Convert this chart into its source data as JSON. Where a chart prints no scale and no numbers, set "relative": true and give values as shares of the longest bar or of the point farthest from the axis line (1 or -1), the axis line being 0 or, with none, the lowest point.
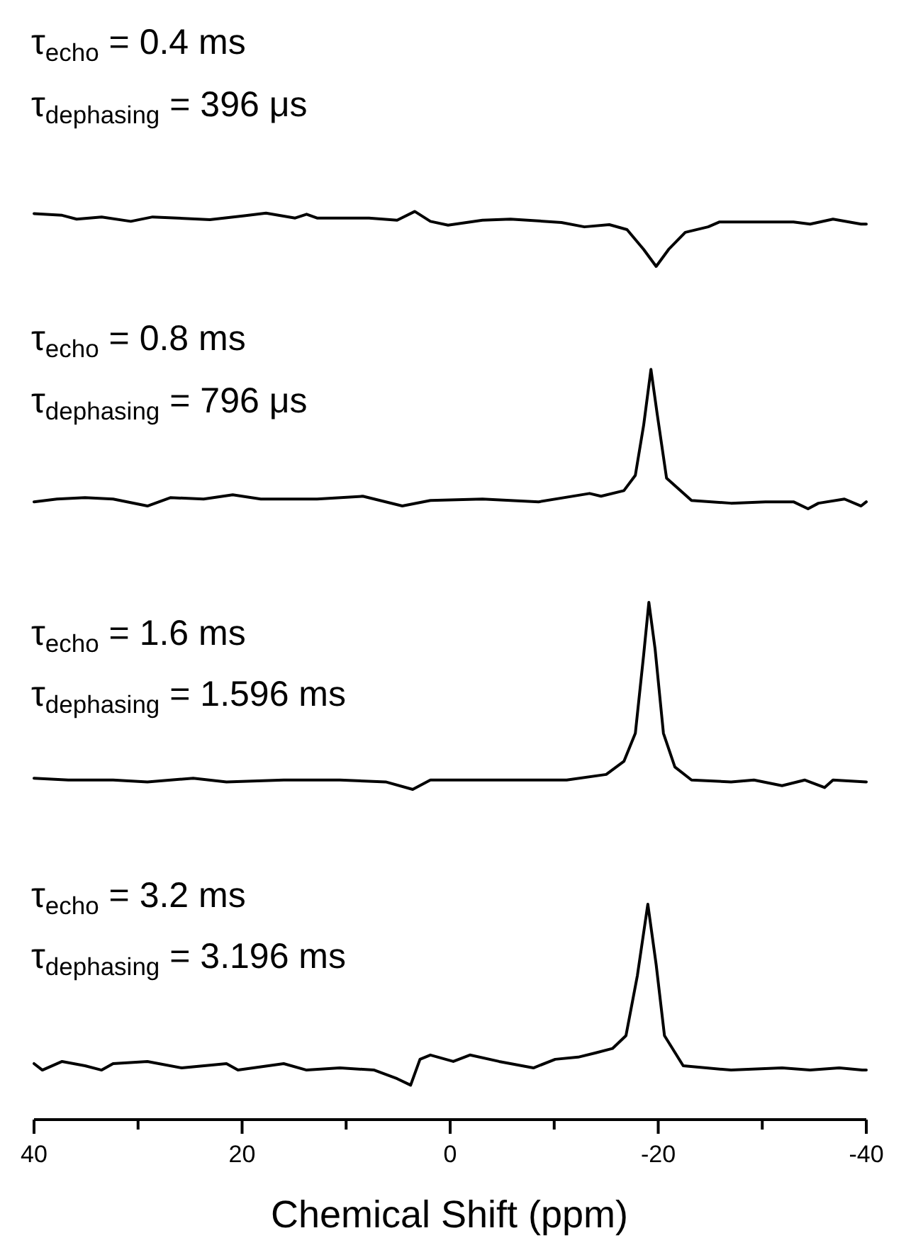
{
  "chart_data": [
    {
      "type": "line",
      "relative": true,
      "color": "#000000",
      "xlim": [
        40,
        -40
      ],
      "tick_labels": false,
      "annotations": [
        "τ$_{echo}$ = 0.4 ms",
        "τ$_{dephasing}$ = 396 μs"
      ],
      "x": [
        40,
        37.3,
        35.9,
        33.5,
        30.7,
        28.6,
        23.1,
        19.8,
        17.7,
        14.9,
        13.8,
        12.8,
        7.8,
        5.1,
        3.4,
        1.9,
        0.2,
        -3.1,
        -5.8,
        -10.7,
        -12.9,
        -15.3,
        -17.0,
        -18.6,
        -19.8,
        -21.0,
        -22.6,
        -24.8,
        -25.9,
        -33.0,
        -34.6,
        -36.8,
        -39.5,
        -40
      ],
      "values": [
        0.96,
        0.93,
        0.86,
        0.9,
        0.82,
        0.9,
        0.85,
        0.92,
        0.97,
        0.88,
        0.95,
        0.88,
        0.88,
        0.84,
        1,
        0.82,
        0.75,
        0.84,
        0.86,
        0.8,
        0.72,
        0.76,
        0.67,
        0.31,
        0,
        0.31,
        0.62,
        0.72,
        0.81,
        0.81,
        0.77,
        0.86,
        0.77,
        0.77
      ]
    },
    {
      "type": "line",
      "relative": true,
      "color": "#000000",
      "xlim": [
        40,
        -40
      ],
      "tick_labels": false,
      "annotations": [
        "τ$_{echo}$ = 0.8 ms",
        "τ$_{dephasing}$ = 796 μs"
      ],
      "x": [
        40,
        37.8,
        35.1,
        32.4,
        29.1,
        26.9,
        23.7,
        20.9,
        18.2,
        12.8,
        8.4,
        4.6,
        1.9,
        -3.1,
        -8.5,
        -13.4,
        -14.5,
        -16.7,
        -17.8,
        -18.6,
        -19.3,
        -19.9,
        -20.8,
        -23.2,
        -27.0,
        -30.3,
        -33.0,
        -34.4,
        -35.4,
        -37.9,
        -39.5,
        -40
      ],
      "values": [
        0.05,
        0.07,
        0.08,
        0.07,
        0.02,
        0.08,
        0.07,
        0.1,
        0.07,
        0.07,
        0.09,
        0.02,
        0.06,
        0.07,
        0.05,
        0.11,
        0.09,
        0.13,
        0.24,
        0.6,
        1,
        0.68,
        0.22,
        0.06,
        0.04,
        0.05,
        0.05,
        0,
        0.04,
        0.07,
        0.02,
        0.05
      ]
    },
    {
      "type": "line",
      "relative": true,
      "color": "#000000",
      "xlim": [
        40,
        -40
      ],
      "tick_labels": false,
      "annotations": [
        "τ$_{echo}$ = 1.6 ms",
        "τ$_{dephasing}$ = 1.596 ms"
      ],
      "x": [
        40,
        36.7,
        32.4,
        29.1,
        24.7,
        21.5,
        16.0,
        10.6,
        6.2,
        3.6,
        1.9,
        -3.1,
        -8.5,
        -11.2,
        -15.0,
        -16.7,
        -17.8,
        -18.6,
        -19.1,
        -19.7,
        -20.5,
        -21.6,
        -23.2,
        -27.0,
        -29.2,
        -31.9,
        -34.1,
        -36.0,
        -36.8,
        -40
      ],
      "values": [
        0.06,
        0.05,
        0.05,
        0.04,
        0.06,
        0.04,
        0.05,
        0.05,
        0.04,
        0,
        0.05,
        0.05,
        0.05,
        0.05,
        0.08,
        0.15,
        0.3,
        0.72,
        1,
        0.75,
        0.3,
        0.12,
        0.05,
        0.04,
        0.05,
        0.02,
        0.05,
        0.01,
        0.05,
        0.04
      ]
    },
    {
      "type": "line",
      "relative": true,
      "color": "#000000",
      "xlim": [
        40,
        -40
      ],
      "xticks": [
        40,
        {
          "value": 30,
          "label": null
        },
        20,
        {
          "value": 10,
          "label": null
        },
        0,
        {
          "value": -10,
          "label": null
        },
        -20,
        {
          "value": -30,
          "label": null
        },
        -40
      ],
      "tick_labels": "x",
      "xlabel": "Chemical Shift (ppm)",
      "annotations": [
        "τ$_{echo}$ = 3.2 ms",
        "τ$_{dephasing}$ = 3.196 ms"
      ],
      "x": [
        40,
        39.2,
        37.3,
        35.1,
        33.5,
        32.4,
        29.1,
        25.8,
        21.5,
        20.4,
        16.0,
        13.8,
        10.6,
        7.3,
        5.1,
        3.8,
        2.9,
        1.9,
        -0.3,
        -1.9,
        -4.7,
        -8.0,
        -10.1,
        -12.3,
        -14.0,
        -15.6,
        -16.9,
        -18.0,
        -19.0,
        -19.8,
        -20.6,
        -22.4,
        -27.0,
        -31.9,
        -34.6,
        -37.4,
        -39.6,
        -40
      ],
      "values": [
        0.26,
        0.23,
        0.27,
        0.25,
        0.23,
        0.26,
        0.27,
        0.24,
        0.26,
        0.23,
        0.26,
        0.23,
        0.24,
        0.23,
        0.19,
        0.16,
        0.28,
        0.3,
        0.27,
        0.3,
        0.27,
        0.24,
        0.28,
        0.29,
        0.31,
        0.33,
        0.39,
        0.67,
        1,
        0.72,
        0.39,
        0.25,
        0.23,
        0.24,
        0.23,
        0.24,
        0.23,
        0.23
      ]
    }
  ]
}
